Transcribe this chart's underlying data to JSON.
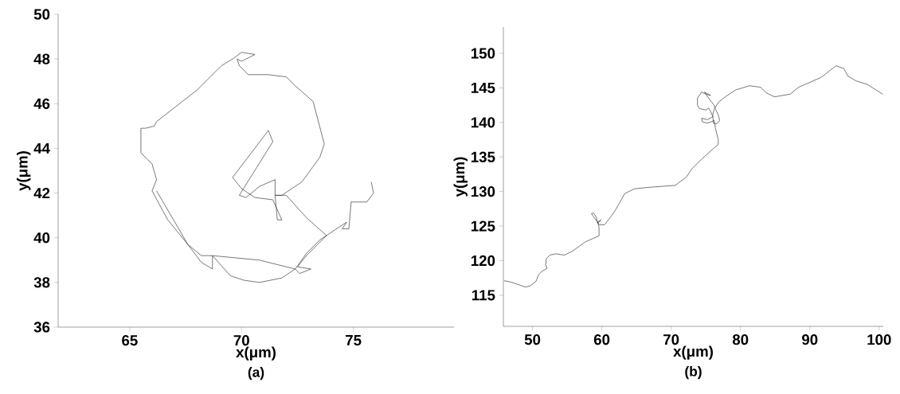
{
  "chart_data": [
    {
      "type": "line",
      "title": "(a)",
      "xlabel": "x(μm)",
      "ylabel": "y(μm)",
      "xlim": [
        61.8,
        79.5
      ],
      "ylim": [
        36,
        50
      ],
      "xticks": [
        65,
        70,
        75
      ],
      "yticks": [
        36,
        38,
        40,
        42,
        44,
        46,
        48,
        50
      ],
      "series": [
        {
          "color": "#333333",
          "x": [
            75.8,
            75.9,
            75.6,
            74.9,
            74.8,
            74.5,
            74.7,
            73.8,
            73.4,
            72.9,
            72.5,
            73.1,
            72.6,
            72.4,
            72.9,
            73.5,
            73.8,
            72.9,
            72.0,
            71.5,
            71.6,
            71.8,
            71.4,
            70.6,
            70.0,
            69.6,
            71.2,
            71.4,
            69.9,
            70.2,
            70.8,
            71.5,
            71.5,
            71.8,
            72.7,
            73.5,
            73.7,
            73.2,
            72.4,
            72.0,
            71.2,
            70.3,
            69.9,
            69.8,
            70.0,
            70.6,
            70.0,
            69.6,
            69.1,
            68.0,
            67.1,
            66.2,
            66.1,
            65.7,
            65.5,
            65.5,
            66.0,
            66.2,
            66.0,
            66.7,
            67.6,
            68.2,
            68.7,
            70.8,
            72.4,
            71.8,
            70.8,
            70.1,
            69.5,
            68.7,
            68.7,
            68.2,
            67.6,
            66.2
          ],
          "values": [
            42.5,
            42.0,
            41.6,
            41.6,
            40.4,
            40.4,
            40.7,
            40.1,
            39.7,
            39.2,
            38.7,
            38.6,
            38.4,
            38.6,
            39.3,
            39.9,
            40.1,
            40.9,
            41.9,
            41.9,
            40.8,
            40.8,
            41.7,
            41.8,
            42.2,
            42.7,
            44.8,
            44.3,
            41.9,
            41.8,
            42.3,
            42.6,
            41.9,
            41.9,
            42.5,
            43.6,
            44.2,
            46.1,
            46.8,
            47.2,
            47.3,
            47.3,
            47.7,
            48.0,
            47.9,
            48.2,
            48.3,
            48.0,
            47.7,
            46.6,
            45.9,
            45.2,
            45.0,
            44.9,
            44.9,
            43.8,
            43.3,
            42.6,
            42.1,
            40.8,
            39.7,
            39.2,
            39.2,
            39.0,
            38.6,
            38.2,
            38.0,
            38.1,
            38.3,
            39.2,
            38.6,
            38.9,
            39.7,
            42.1
          ]
        }
      ]
    },
    {
      "type": "line",
      "title": "(b)",
      "xlabel": "x(μm)",
      "ylabel": "y(μm)",
      "xlim": [
        45.8,
        100.6
      ],
      "ylim": [
        110.5,
        153.8
      ],
      "xticks": [
        50,
        60,
        70,
        80,
        90,
        100
      ],
      "yticks": [
        115,
        120,
        125,
        130,
        135,
        140,
        145,
        150
      ],
      "series": [
        {
          "color": "#333333",
          "x": [
            45.9,
            46.9,
            48.9,
            49.6,
            50.5,
            50.9,
            51.3,
            52.1,
            51.9,
            52.0,
            52.5,
            53.4,
            54.6,
            55.8,
            57.6,
            59.6,
            59.6,
            59.4,
            59.0,
            58.5,
            58.8,
            59.2,
            59.4,
            59.9,
            59.4,
            59.6,
            60.4,
            61.1,
            61.9,
            63.3,
            64.7,
            66.7,
            70.6,
            72.2,
            73.0,
            74.4,
            76.2,
            76.8,
            76.8,
            76.4,
            76.2,
            75.8,
            75.2,
            74.5,
            74.4,
            75.2,
            76.0,
            75.8,
            75.4,
            75.0,
            74.1,
            73.8,
            73.8,
            74.4,
            75.0,
            75.7,
            74.8,
            75.4,
            76.2,
            76.4,
            76.8,
            77.0,
            76.6,
            76.1,
            76.0,
            76.2,
            76.8,
            77.8,
            79.3,
            81.3,
            82.9,
            83.7,
            84.9,
            87.2,
            88.4,
            91.6,
            93.8,
            94.9,
            95.5,
            96.7,
            98.3,
            100.5
          ],
          "values": [
            117.1,
            116.9,
            116.2,
            116.3,
            117.0,
            118.0,
            118.4,
            118.9,
            119.4,
            120.3,
            120.8,
            121.0,
            120.8,
            121.4,
            122.7,
            123.6,
            124.8,
            125.6,
            126.1,
            126.8,
            126.9,
            126.3,
            125.4,
            125.9,
            125.6,
            125.2,
            125.2,
            126.1,
            127.2,
            129.7,
            130.4,
            130.6,
            130.9,
            132.1,
            133.3,
            134.7,
            136.3,
            136.8,
            137.5,
            139.1,
            140.3,
            140.1,
            139.9,
            140.1,
            140.6,
            140.4,
            140.8,
            141.4,
            142.1,
            141.8,
            142.0,
            142.5,
            143.5,
            144.4,
            144.1,
            143.9,
            144.4,
            143.5,
            142.5,
            141.9,
            141.1,
            140.3,
            139.8,
            139.9,
            141.1,
            141.9,
            142.9,
            143.7,
            144.7,
            145.3,
            145.1,
            144.3,
            143.7,
            144.1,
            145.1,
            146.5,
            148.2,
            147.8,
            146.7,
            146.0,
            145.5,
            144.1
          ]
        }
      ]
    }
  ]
}
